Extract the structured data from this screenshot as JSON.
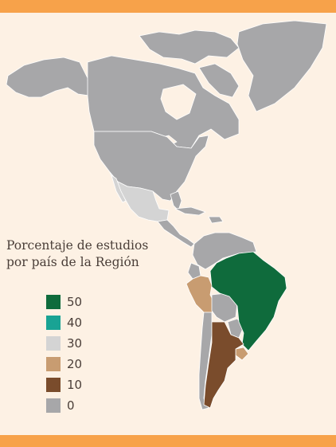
{
  "legend": {
    "title_line1": "Porcentaje de estudios",
    "title_line2": "por país de la Región",
    "items": [
      {
        "label": "50",
        "color": "#0f6b3c"
      },
      {
        "label": "40",
        "color": "#19a394"
      },
      {
        "label": "30",
        "color": "#d4d4d4"
      },
      {
        "label": "20",
        "color": "#c89c71"
      },
      {
        "label": "10",
        "color": "#7a4c2c"
      },
      {
        "label": "0",
        "color": "#a7a7a9"
      }
    ]
  },
  "regions": [
    {
      "name": "Brasil",
      "value": 50
    },
    {
      "name": "México",
      "value": 30
    },
    {
      "name": "Perú",
      "value": 20
    },
    {
      "name": "Uruguay",
      "value": 20
    },
    {
      "name": "Argentina",
      "value": 10
    }
  ],
  "colors": {
    "background": "#fdf1e4",
    "border_bar": "#f7a24a",
    "land_default": "#a7a7a9",
    "borders": "#ffffff"
  }
}
